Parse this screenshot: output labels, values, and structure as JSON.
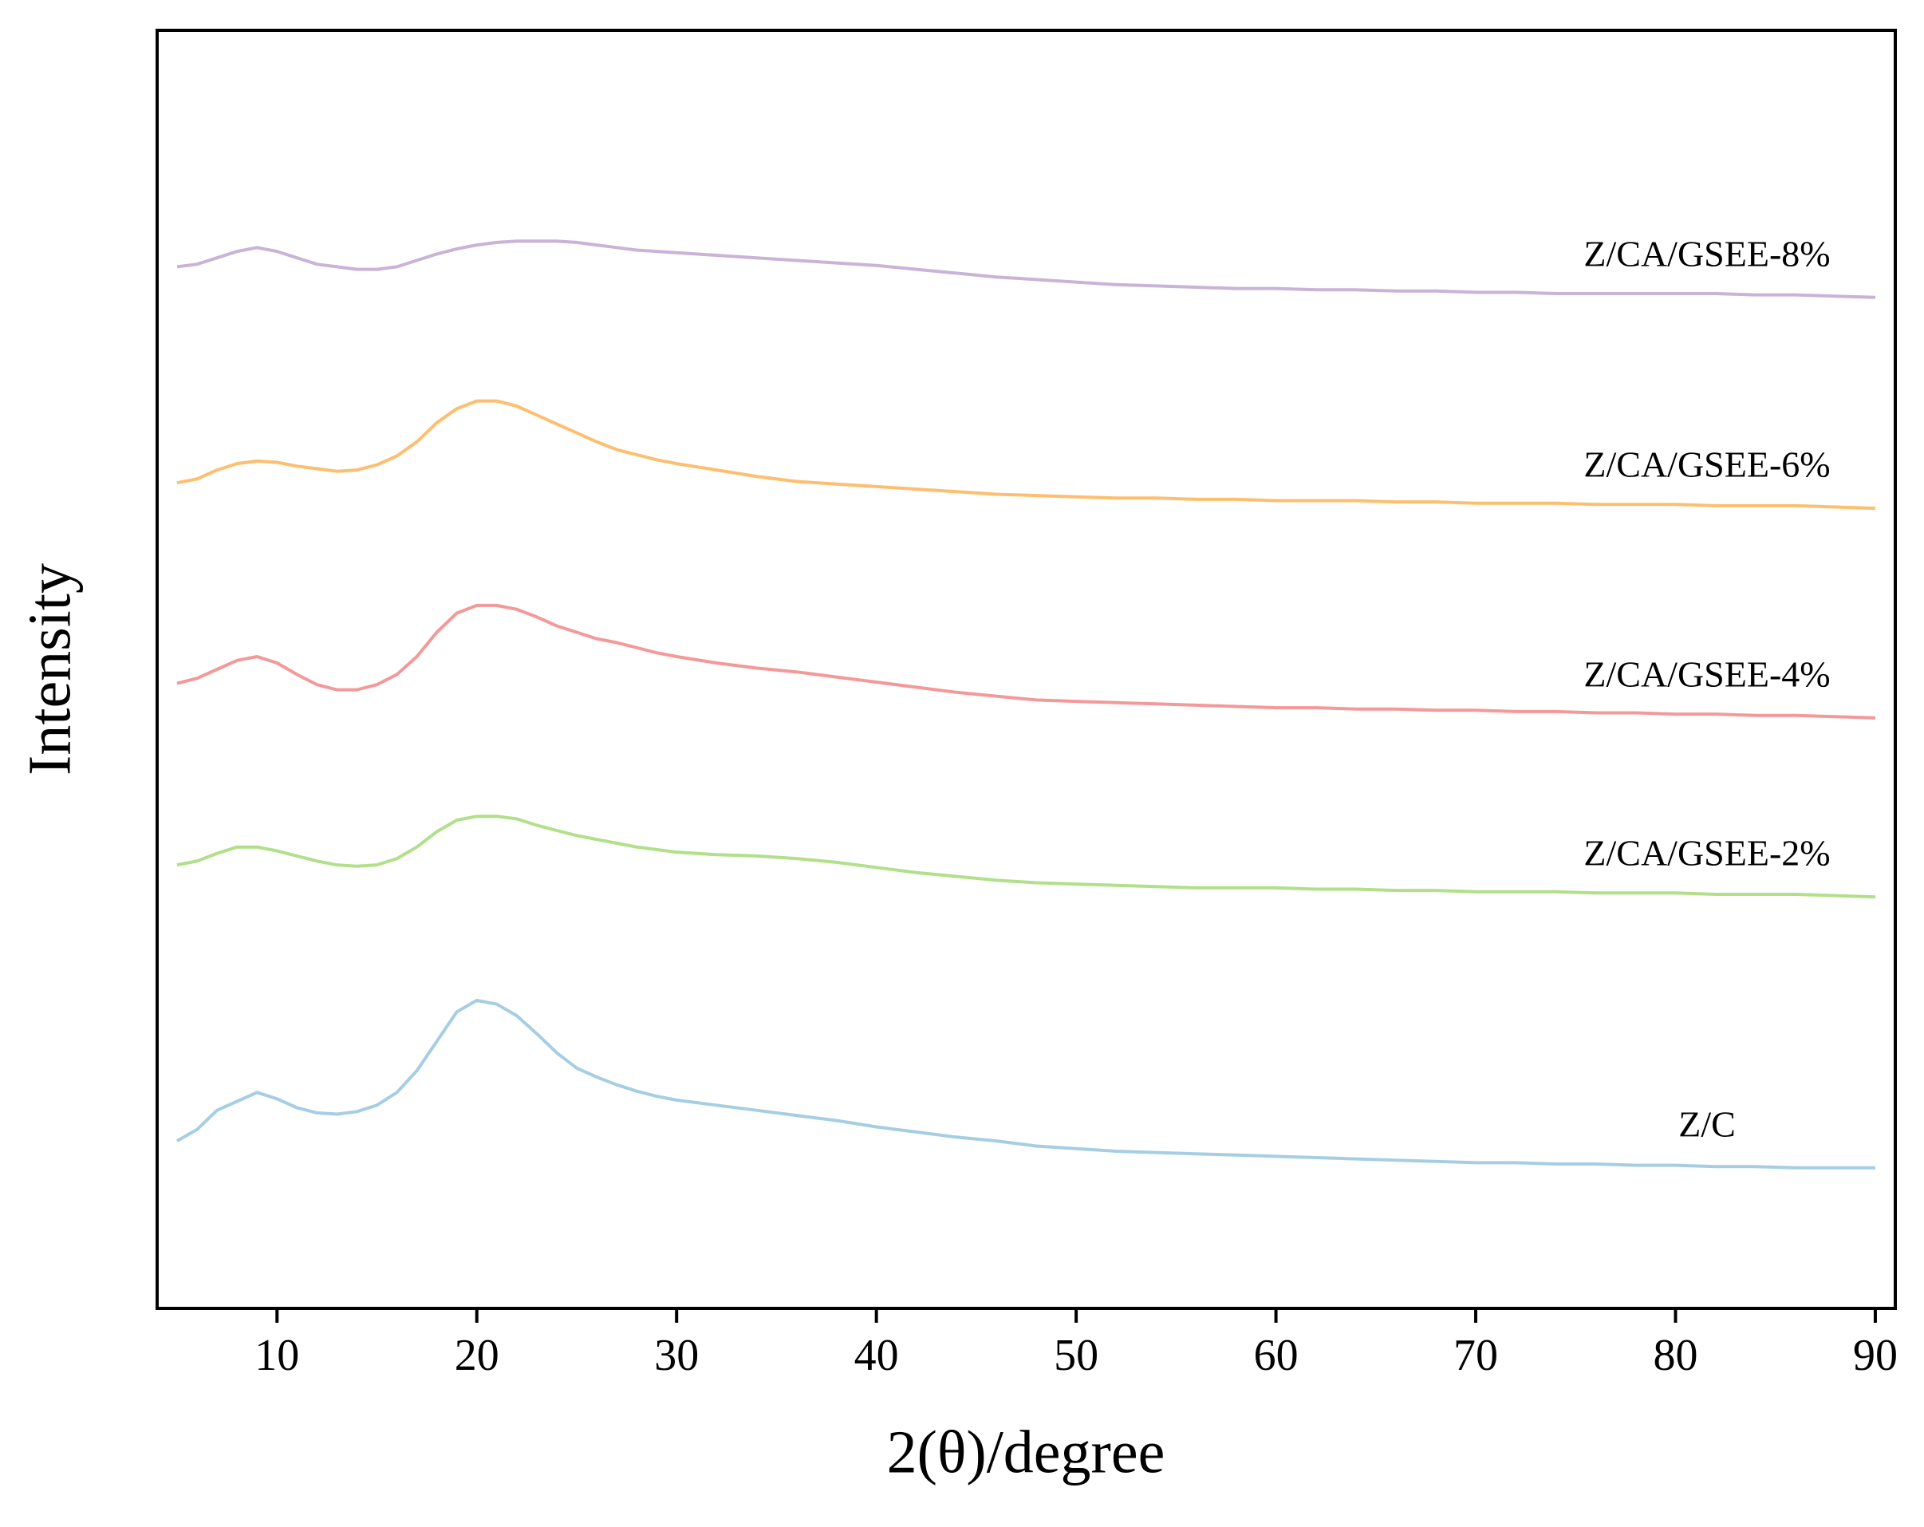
{
  "chart_data": {
    "type": "line",
    "xlabel": "2(θ)/degree",
    "ylabel": "Intensity",
    "xlim": [
      4,
      91
    ],
    "ylim": [
      0,
      100
    ],
    "xticks": [
      10,
      20,
      30,
      40,
      50,
      60,
      70,
      80,
      90
    ],
    "x": [
      5,
      6,
      7,
      8,
      9,
      10,
      11,
      12,
      13,
      14,
      15,
      16,
      17,
      18,
      19,
      20,
      21,
      22,
      23,
      24,
      25,
      26,
      27,
      28,
      29,
      30,
      32,
      34,
      36,
      38,
      40,
      42,
      44,
      46,
      48,
      50,
      52,
      54,
      56,
      58,
      60,
      62,
      64,
      66,
      68,
      70,
      72,
      74,
      76,
      78,
      80,
      82,
      84,
      86,
      88,
      90
    ],
    "series": [
      {
        "name": "Z/C",
        "color": "#a6cee3",
        "values": [
          13.1,
          14.0,
          15.5,
          16.2,
          16.9,
          16.4,
          15.7,
          15.3,
          15.2,
          15.4,
          15.9,
          16.9,
          18.6,
          20.9,
          23.2,
          24.1,
          23.8,
          22.9,
          21.5,
          20.0,
          18.8,
          18.1,
          17.5,
          17.0,
          16.6,
          16.3,
          15.9,
          15.5,
          15.1,
          14.7,
          14.2,
          13.8,
          13.4,
          13.1,
          12.7,
          12.5,
          12.3,
          12.2,
          12.1,
          12.0,
          11.9,
          11.8,
          11.7,
          11.6,
          11.5,
          11.4,
          11.4,
          11.3,
          11.3,
          11.2,
          11.2,
          11.1,
          11.1,
          11.0,
          11.0,
          11.0
        ]
      },
      {
        "name": "Z/CA/GSEE-2%",
        "color": "#b2df8a",
        "values": [
          34.7,
          35.0,
          35.6,
          36.1,
          36.1,
          35.8,
          35.4,
          35.0,
          34.7,
          34.6,
          34.7,
          35.2,
          36.1,
          37.3,
          38.2,
          38.5,
          38.5,
          38.3,
          37.8,
          37.4,
          37.0,
          36.7,
          36.4,
          36.1,
          35.9,
          35.7,
          35.5,
          35.4,
          35.2,
          34.9,
          34.5,
          34.1,
          33.8,
          33.5,
          33.3,
          33.2,
          33.1,
          33.0,
          32.9,
          32.9,
          32.9,
          32.8,
          32.8,
          32.7,
          32.7,
          32.6,
          32.6,
          32.6,
          32.5,
          32.5,
          32.5,
          32.4,
          32.4,
          32.4,
          32.3,
          32.2
        ]
      },
      {
        "name": "Z/CA/GSEE-4%",
        "color": "#f4999a",
        "values": [
          48.9,
          49.3,
          50.0,
          50.7,
          51.0,
          50.5,
          49.6,
          48.8,
          48.4,
          48.4,
          48.8,
          49.6,
          51.0,
          52.9,
          54.4,
          55.0,
          55.0,
          54.7,
          54.1,
          53.4,
          52.9,
          52.4,
          52.1,
          51.7,
          51.3,
          51.0,
          50.5,
          50.1,
          49.8,
          49.4,
          49.0,
          48.6,
          48.2,
          47.9,
          47.6,
          47.5,
          47.4,
          47.3,
          47.2,
          47.1,
          47.0,
          47.0,
          46.9,
          46.9,
          46.8,
          46.8,
          46.7,
          46.7,
          46.6,
          46.6,
          46.5,
          46.5,
          46.4,
          46.4,
          46.3,
          46.2
        ]
      },
      {
        "name": "Z/CA/GSEE-6%",
        "color": "#fdbf6f",
        "values": [
          64.6,
          64.9,
          65.6,
          66.1,
          66.3,
          66.2,
          65.9,
          65.7,
          65.5,
          65.6,
          66.0,
          66.7,
          67.8,
          69.3,
          70.4,
          71.0,
          71.0,
          70.6,
          69.9,
          69.2,
          68.5,
          67.8,
          67.2,
          66.8,
          66.4,
          66.1,
          65.6,
          65.1,
          64.7,
          64.5,
          64.3,
          64.1,
          63.9,
          63.7,
          63.6,
          63.5,
          63.4,
          63.4,
          63.3,
          63.3,
          63.2,
          63.2,
          63.2,
          63.1,
          63.1,
          63.0,
          63.0,
          63.0,
          62.9,
          62.9,
          62.9,
          62.8,
          62.8,
          62.8,
          62.7,
          62.6
        ]
      },
      {
        "name": "Z/CA/GSEE-8%",
        "color": "#c9b3d6",
        "values": [
          81.5,
          81.7,
          82.2,
          82.7,
          83.0,
          82.7,
          82.2,
          81.7,
          81.5,
          81.3,
          81.3,
          81.5,
          82.0,
          82.5,
          82.9,
          83.2,
          83.4,
          83.5,
          83.5,
          83.5,
          83.4,
          83.2,
          83.0,
          82.8,
          82.7,
          82.6,
          82.4,
          82.2,
          82.0,
          81.8,
          81.6,
          81.3,
          81.0,
          80.7,
          80.5,
          80.3,
          80.1,
          80.0,
          79.9,
          79.8,
          79.8,
          79.7,
          79.7,
          79.6,
          79.6,
          79.5,
          79.5,
          79.4,
          79.4,
          79.4,
          79.4,
          79.4,
          79.3,
          79.3,
          79.2,
          79.1
        ]
      }
    ]
  }
}
